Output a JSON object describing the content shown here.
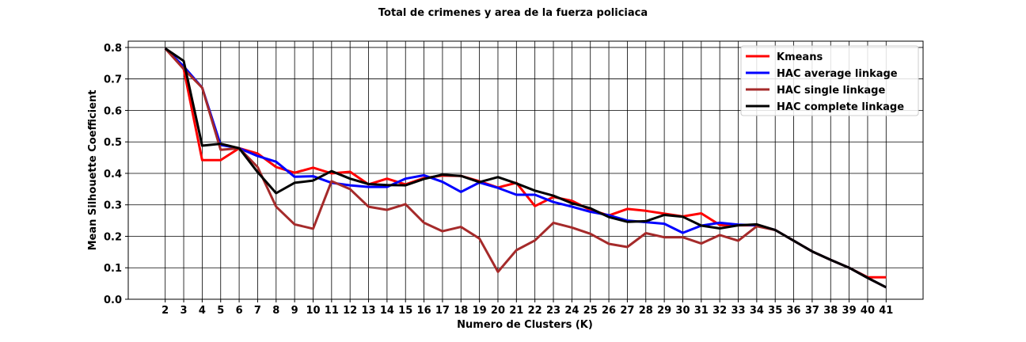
{
  "chart_data": {
    "type": "line",
    "title": "Total de crimenes y area de la fuerza policiaca",
    "xlabel": "Numero de Clusters (K)",
    "ylabel": "Mean Silhouette Coefficient",
    "x": [
      2,
      3,
      4,
      5,
      6,
      7,
      8,
      9,
      10,
      11,
      12,
      13,
      14,
      15,
      16,
      17,
      18,
      19,
      20,
      21,
      22,
      23,
      24,
      25,
      26,
      27,
      28,
      29,
      30,
      31,
      32,
      33,
      34,
      35,
      36,
      37,
      38,
      39,
      40,
      41
    ],
    "xlim": [
      0.0,
      43.0
    ],
    "ylim": [
      0.0,
      0.82
    ],
    "yticks": [
      0.0,
      0.1,
      0.2,
      0.3,
      0.4,
      0.5,
      0.6,
      0.7,
      0.8
    ],
    "ytick_labels": [
      "0.0",
      "0.1",
      "0.2",
      "0.3",
      "0.4",
      "0.5",
      "0.6",
      "0.7",
      "0.8"
    ],
    "grid": true,
    "legend_position": "top-right",
    "series": [
      {
        "name": "Kmeans",
        "color": "#ff0000",
        "values": [
          0.797,
          0.732,
          0.442,
          0.442,
          0.48,
          0.463,
          0.42,
          0.402,
          0.418,
          0.4,
          0.405,
          0.365,
          0.383,
          0.365,
          0.385,
          0.393,
          0.392,
          0.375,
          0.355,
          0.37,
          0.296,
          0.325,
          0.313,
          0.284,
          0.266,
          0.287,
          0.281,
          0.272,
          0.263,
          0.273,
          0.236,
          0.235,
          0.235,
          0.22,
          0.186,
          0.152,
          0.125,
          0.1,
          0.07,
          0.07
        ]
      },
      {
        "name": "HAC average linkage",
        "color": "#0000ff",
        "values": [
          0.797,
          0.74,
          0.672,
          0.49,
          0.48,
          0.455,
          0.437,
          0.389,
          0.391,
          0.37,
          0.362,
          0.357,
          0.357,
          0.383,
          0.394,
          0.373,
          0.341,
          0.371,
          0.354,
          0.332,
          0.332,
          0.309,
          0.294,
          0.278,
          0.267,
          0.25,
          0.245,
          0.24,
          0.211,
          0.234,
          0.243,
          0.237,
          0.235,
          0.22,
          0.186,
          0.152,
          0.125,
          0.1,
          0.068,
          0.038
        ]
      },
      {
        "name": "HAC single linkage",
        "color": "#a52a2a",
        "values": [
          0.797,
          0.732,
          0.672,
          0.475,
          0.48,
          0.42,
          0.294,
          0.238,
          0.224,
          0.375,
          0.35,
          0.294,
          0.284,
          0.302,
          0.243,
          0.216,
          0.23,
          0.193,
          0.087,
          0.156,
          0.187,
          0.243,
          0.228,
          0.208,
          0.176,
          0.166,
          0.21,
          0.197,
          0.197,
          0.177,
          0.204,
          0.186,
          0.232,
          0.22,
          0.186,
          0.152,
          0.125,
          0.1,
          0.068,
          0.038
        ]
      },
      {
        "name": "HAC complete linkage",
        "color": "#000000",
        "values": [
          0.797,
          0.757,
          0.488,
          0.494,
          0.48,
          0.404,
          0.337,
          0.37,
          0.377,
          0.407,
          0.383,
          0.366,
          0.363,
          0.362,
          0.382,
          0.396,
          0.392,
          0.372,
          0.388,
          0.368,
          0.345,
          0.329,
          0.305,
          0.289,
          0.261,
          0.246,
          0.248,
          0.268,
          0.262,
          0.234,
          0.225,
          0.235,
          0.238,
          0.22,
          0.186,
          0.152,
          0.125,
          0.1,
          0.068,
          0.038
        ]
      }
    ]
  }
}
